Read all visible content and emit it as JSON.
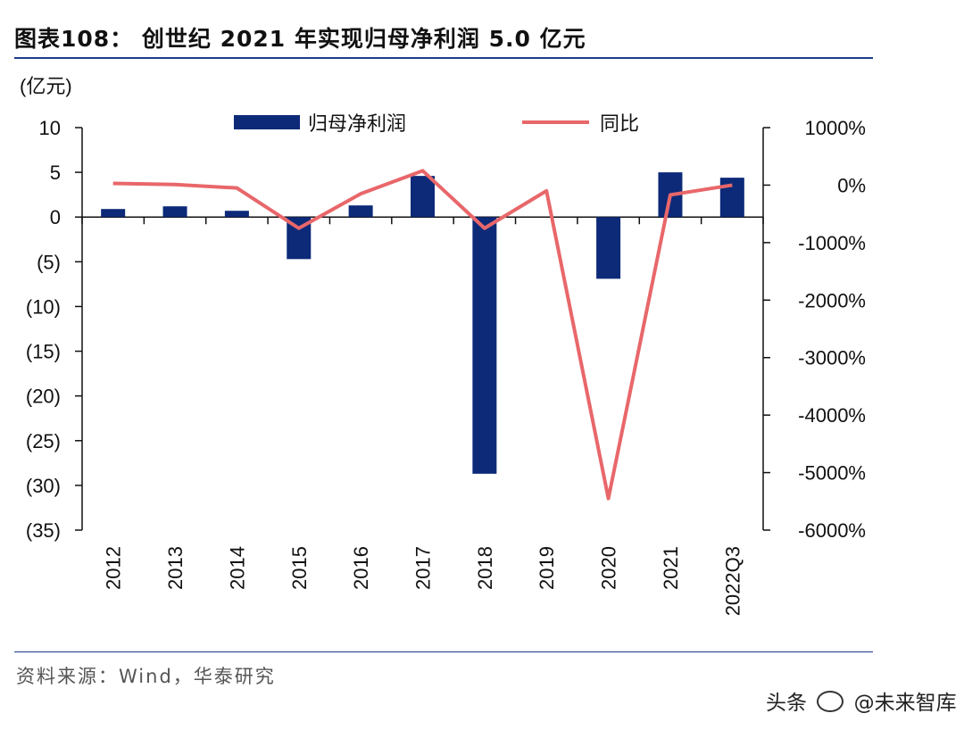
{
  "title": "图表108： 创世纪 2021 年实现归母净利润 5.0 亿元",
  "source": "资料来源：Wind，华泰研究",
  "watermark": {
    "platform": "头条",
    "account": "@未来智库"
  },
  "colors": {
    "bar": "#0c2a78",
    "line": "#e8676a",
    "axis": "#111111",
    "rule": "#1d3b8a"
  },
  "chart_data": {
    "type": "bar+line",
    "categories": [
      "2012",
      "2013",
      "2014",
      "2015",
      "2016",
      "2017",
      "2018",
      "2019",
      "2020",
      "2021",
      "2022Q3"
    ],
    "series": [
      {
        "name": "归母净利润",
        "type": "bar",
        "axis": "left",
        "values": [
          0.9,
          1.2,
          0.7,
          -4.7,
          1.3,
          4.6,
          -28.7,
          null,
          -6.9,
          5.0,
          4.4
        ]
      },
      {
        "name": "同比",
        "type": "line",
        "axis": "right",
        "values": [
          30,
          10,
          -50,
          -750,
          -150,
          250,
          -750,
          -100,
          -5450,
          -170,
          0
        ]
      }
    ],
    "left_axis": {
      "unit_label": "(亿元)",
      "ylim": [
        -35,
        10
      ],
      "ticks": [
        10,
        5,
        0,
        -5,
        -10,
        -15,
        -20,
        -25,
        -30,
        -35
      ],
      "tick_labels": [
        "10",
        "5",
        "0",
        "(5)",
        "(10)",
        "(15)",
        "(20)",
        "(25)",
        "(30)",
        "(35)"
      ]
    },
    "right_axis": {
      "ylim": [
        -6000,
        1000
      ],
      "ticks": [
        1000,
        0,
        -1000,
        -2000,
        -3000,
        -4000,
        -5000,
        -6000
      ],
      "tick_labels": [
        "1000%",
        "0%",
        "-1000%",
        "-2000%",
        "-3000%",
        "-4000%",
        "-5000%",
        "-6000%"
      ]
    },
    "legend": [
      {
        "label": "归母净利润",
        "kind": "bar"
      },
      {
        "label": "同比",
        "kind": "line"
      }
    ],
    "legend_position": "top"
  }
}
